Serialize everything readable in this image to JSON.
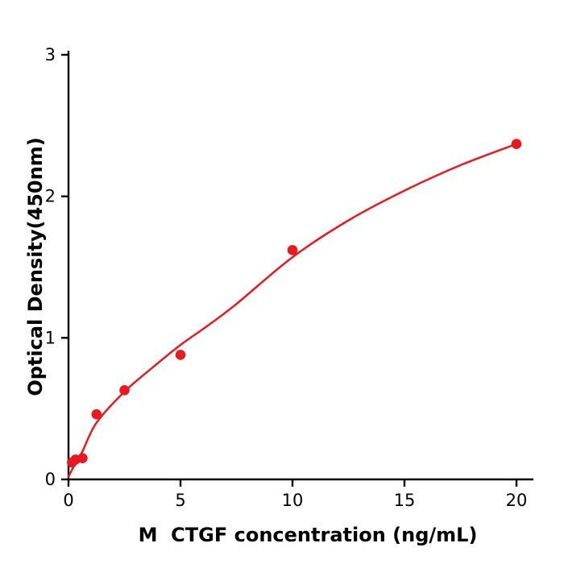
{
  "chart_data": {
    "type": "scatter",
    "title": "",
    "xlabel": "M  CTGF concentration (ng/mL)",
    "ylabel": "Optical Density(450nm)",
    "xlim": [
      0,
      20.7
    ],
    "ylim": [
      0,
      3
    ],
    "x_ticks": [
      0,
      5,
      10,
      15,
      20
    ],
    "y_ticks": [
      0,
      1,
      2,
      3
    ],
    "grid": false,
    "legend": "none",
    "series": [
      {
        "name": "standard-points",
        "type": "scatter",
        "color": "#e8191f",
        "x": [
          0.156,
          0.313,
          0.625,
          1.25,
          2.5,
          5,
          10,
          20
        ],
        "y": [
          0.12,
          0.14,
          0.15,
          0.46,
          0.63,
          0.88,
          1.62,
          2.37
        ]
      },
      {
        "name": "fit-curve",
        "type": "line",
        "color": "#e8191f",
        "x": [
          0,
          0.3,
          0.6,
          1.25,
          2.5,
          3.75,
          5,
          6.25,
          7.5,
          10,
          12.5,
          15,
          17.5,
          20
        ],
        "y": [
          0.02,
          0.11,
          0.19,
          0.4,
          0.62,
          0.79,
          0.95,
          1.09,
          1.24,
          1.57,
          1.83,
          2.04,
          2.22,
          2.37
        ]
      }
    ]
  },
  "colors": {
    "accent": "#e8191f",
    "axis": "#000000",
    "background": "#ffffff"
  }
}
